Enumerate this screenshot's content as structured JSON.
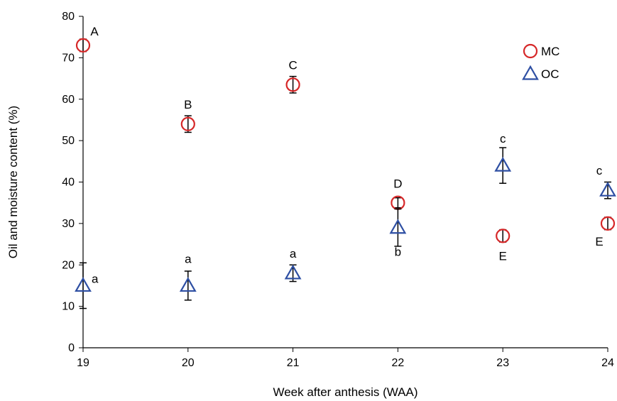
{
  "chart_data": {
    "type": "scatter",
    "xlabel": "Week after anthesis (WAA)",
    "ylabel": "Oil and moisture content (%)",
    "xlim": [
      19,
      24
    ],
    "ylim": [
      0,
      80
    ],
    "xticks": [
      "19",
      "20",
      "21",
      "22",
      "23",
      "24"
    ],
    "yticks": [
      "0",
      "10",
      "20",
      "30",
      "40",
      "50",
      "60",
      "70",
      "80"
    ],
    "grid": false,
    "legend_position": "top-right",
    "series": [
      {
        "name": "MC",
        "marker": "circle",
        "color": "#d62728",
        "x": [
          19,
          20,
          21,
          22,
          23,
          24
        ],
        "y": [
          73,
          54,
          63.5,
          35,
          27,
          30
        ],
        "error": [
          1.5,
          2,
          2,
          1.2,
          1.5,
          1.5
        ],
        "labels": [
          "A",
          "B",
          "C",
          "D",
          "E",
          "E"
        ]
      },
      {
        "name": "OC",
        "marker": "triangle",
        "color": "#2e4fa3",
        "x": [
          19,
          20,
          21,
          22,
          23,
          24
        ],
        "y": [
          15,
          15,
          18,
          29,
          44,
          38
        ],
        "error": [
          5.5,
          3.5,
          2,
          4.5,
          4.3,
          2
        ],
        "labels": [
          "a",
          "a",
          "a",
          "b",
          "c",
          "c"
        ]
      }
    ]
  }
}
